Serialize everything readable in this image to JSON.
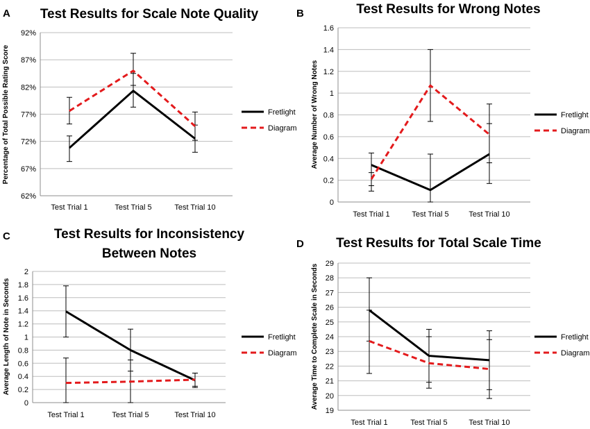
{
  "chart_data": [
    {
      "panel": "A",
      "type": "line",
      "title": [
        "Test Results for Scale Note Quality"
      ],
      "xlabel": "",
      "ylabel": "Percentage of Total Possible Rating Score",
      "categories": [
        "Test Trial 1",
        "Test  Trial 5",
        "Test  Trial 10"
      ],
      "ylim": [
        62,
        92
      ],
      "yticks": [
        62,
        67,
        72,
        77,
        82,
        87,
        92
      ],
      "ytick_labels": [
        "62%",
        "67%",
        "72%",
        "77%",
        "82%",
        "87%",
        "92%"
      ],
      "legend": "right",
      "series": [
        {
          "name": "Fretlight",
          "color": "#000000",
          "style": "solid",
          "values": [
            70.8,
            81.3,
            72.5
          ],
          "err_low": [
            68.3,
            78.3,
            70.0
          ],
          "err_high": [
            73.0,
            84.5,
            75.0
          ]
        },
        {
          "name": "Diagram",
          "color": "#e31a1c",
          "style": "dashed",
          "values": [
            77.6,
            85.0,
            74.8
          ],
          "err_low": [
            75.2,
            82.3,
            72.2
          ],
          "err_high": [
            80.1,
            88.2,
            77.4
          ]
        }
      ]
    },
    {
      "panel": "B",
      "type": "line",
      "title": [
        "Test Results for Wrong Notes"
      ],
      "xlabel": "",
      "ylabel": "Average Number of Wrong Notes",
      "categories": [
        "Test Trial 1",
        "Test Trial 5",
        "Test Trial 10"
      ],
      "ylim": [
        0,
        1.6
      ],
      "yticks": [
        0,
        0.2,
        0.4,
        0.6,
        0.8,
        1,
        1.2,
        1.4,
        1.6
      ],
      "ytick_labels": [
        "0",
        "0.2",
        "0.4",
        "0.6",
        "0.8",
        "1",
        "1.2",
        "1.4",
        "1.6"
      ],
      "legend": "right",
      "series": [
        {
          "name": "Fretlight",
          "color": "#000000",
          "style": "solid",
          "values": [
            0.34,
            0.11,
            0.44
          ],
          "err_low": [
            0.1,
            0.0,
            0.17
          ],
          "err_high": [
            0.45,
            0.44,
            0.72
          ]
        },
        {
          "name": "Diagram",
          "color": "#e31a1c",
          "style": "dashed",
          "values": [
            0.21,
            1.07,
            0.62
          ],
          "err_low": [
            0.15,
            0.74,
            0.36
          ],
          "err_high": [
            0.27,
            1.4,
            0.9
          ]
        }
      ]
    },
    {
      "panel": "C",
      "type": "line",
      "title": [
        "Test Results for Inconsistency",
        "Between Notes"
      ],
      "xlabel": "",
      "ylabel": "Average Length of Note in Seconds",
      "categories": [
        "Test Trial 1",
        "Test Trial 5",
        "Test Trial 10"
      ],
      "ylim": [
        0,
        2
      ],
      "yticks": [
        0,
        0.2,
        0.4,
        0.6,
        0.8,
        1,
        1.2,
        1.4,
        1.6,
        1.8,
        2
      ],
      "ytick_labels": [
        "0",
        "0.2",
        "0.4",
        "0.6",
        "0.8",
        "1",
        "1.2",
        "1.4",
        "1.6",
        "1.8",
        "2"
      ],
      "legend": "right",
      "series": [
        {
          "name": "Fretlight",
          "color": "#000000",
          "style": "solid",
          "values": [
            1.39,
            0.8,
            0.34
          ],
          "err_low": [
            1.0,
            0.48,
            0.23
          ],
          "err_high": [
            1.78,
            1.12,
            0.45
          ]
        },
        {
          "name": "Diagram",
          "color": "#e31a1c",
          "style": "dashed",
          "values": [
            0.3,
            0.32,
            0.35
          ],
          "err_low": [
            0.0,
            0.0,
            0.25
          ],
          "err_high": [
            0.68,
            0.65,
            0.45
          ]
        }
      ]
    },
    {
      "panel": "D",
      "type": "line",
      "title": [
        "Test Results for Total Scale Time"
      ],
      "xlabel": "",
      "ylabel": "Average Time to Complete Scale in Seconds",
      "categories": [
        "Test Trial 1",
        "Test Trial 5",
        "Test Trial 10"
      ],
      "ylim": [
        19,
        29
      ],
      "yticks": [
        19,
        20,
        21,
        22,
        23,
        24,
        25,
        26,
        27,
        28,
        29
      ],
      "ytick_labels": [
        "19",
        "20",
        "21",
        "22",
        "23",
        "24",
        "25",
        "26",
        "27",
        "28",
        "29"
      ],
      "legend": "right",
      "series": [
        {
          "name": "Fretlight",
          "color": "#000000",
          "style": "solid",
          "values": [
            25.8,
            22.7,
            22.4
          ],
          "err_low": [
            23.7,
            20.9,
            20.4
          ],
          "err_high": [
            28.0,
            24.5,
            24.4
          ]
        },
        {
          "name": "Diagram",
          "color": "#e31a1c",
          "style": "dashed",
          "values": [
            23.7,
            22.2,
            21.8
          ],
          "err_low": [
            21.5,
            20.5,
            19.8
          ],
          "err_high": [
            25.8,
            24.0,
            23.8
          ]
        }
      ]
    }
  ]
}
